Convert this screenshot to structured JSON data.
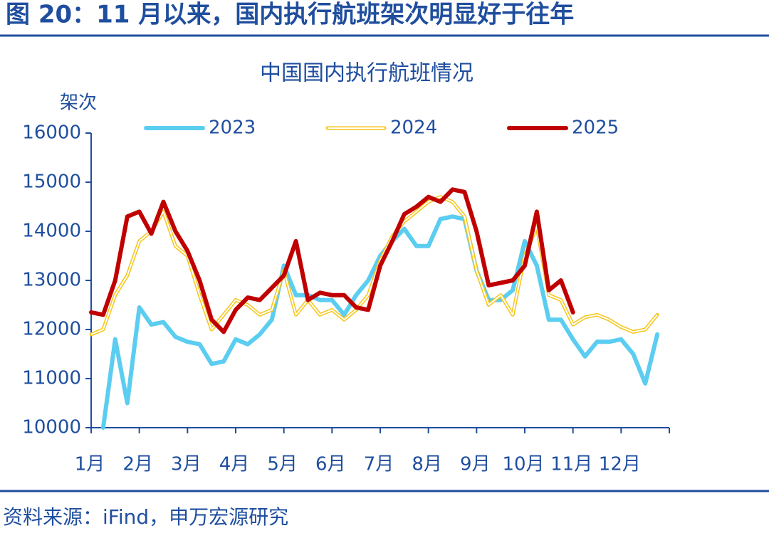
{
  "header": {
    "title": "图 20：11 月以来，国内执行航班架次明显好于往年"
  },
  "chart_data": {
    "type": "line",
    "title": "中国国内执行航班情况",
    "y_label": "架次",
    "categories": [
      "1月",
      null,
      null,
      null,
      "2月",
      null,
      null,
      null,
      "3月",
      null,
      null,
      null,
      "4月",
      null,
      null,
      null,
      "5月",
      null,
      null,
      null,
      "6月",
      null,
      null,
      null,
      "7月",
      null,
      null,
      null,
      "8月",
      null,
      null,
      null,
      "9月",
      null,
      null,
      null,
      "10月",
      null,
      null,
      null,
      "11月",
      null,
      null,
      null,
      "12月",
      null,
      null,
      null
    ],
    "series": [
      {
        "name": "2023",
        "color": "#5bcdf0",
        "width": 6,
        "double": false,
        "values": [
          null,
          10000,
          11800,
          10500,
          12450,
          12100,
          12150,
          11850,
          11750,
          11700,
          11300,
          11350,
          11800,
          11700,
          11900,
          12200,
          13300,
          12700,
          12700,
          12600,
          12600,
          12300,
          12700,
          13000,
          13500,
          13800,
          14050,
          13700,
          13700,
          14250,
          14300,
          14250,
          13200,
          12600,
          12600,
          12800,
          13800,
          13300,
          12200,
          12200,
          11800,
          11450,
          11750,
          11750,
          11800,
          11500,
          10900,
          11900
        ]
      },
      {
        "name": "2024",
        "color": "#f5c518",
        "width": 5,
        "double": true,
        "values": [
          11900,
          12000,
          12700,
          13100,
          13800,
          14000,
          14400,
          13700,
          13500,
          12700,
          12000,
          12300,
          12600,
          12500,
          12300,
          12400,
          13200,
          12300,
          12600,
          12300,
          12400,
          12200,
          12400,
          12700,
          13400,
          13900,
          14200,
          14400,
          14600,
          14700,
          14600,
          14300,
          13200,
          12500,
          12700,
          12300,
          13500,
          14100,
          12700,
          12600,
          12100,
          12250,
          12300,
          12200,
          12050,
          11950,
          12000,
          12300
        ]
      },
      {
        "name": "2025",
        "color": "#c00000",
        "width": 6,
        "double": false,
        "values": [
          12350,
          12300,
          13000,
          14300,
          14400,
          13950,
          14600,
          14000,
          13600,
          13000,
          12200,
          11950,
          12400,
          12650,
          12600,
          12850,
          13100,
          13800,
          12600,
          12750,
          12700,
          12700,
          12450,
          12400,
          13300,
          13800,
          14350,
          14500,
          14700,
          14600,
          14850,
          14800,
          14000,
          12900,
          12950,
          13000,
          13300,
          14400,
          12800,
          13000,
          12350,
          null,
          null,
          null,
          null,
          null,
          null,
          null
        ]
      }
    ],
    "ylim": [
      10000,
      16000
    ],
    "yticks": [
      10000,
      11000,
      12000,
      13000,
      14000,
      15000,
      16000
    ],
    "grid": false,
    "legend": "top"
  },
  "footer": {
    "source": "资料来源：iFind，申万宏源研究"
  }
}
